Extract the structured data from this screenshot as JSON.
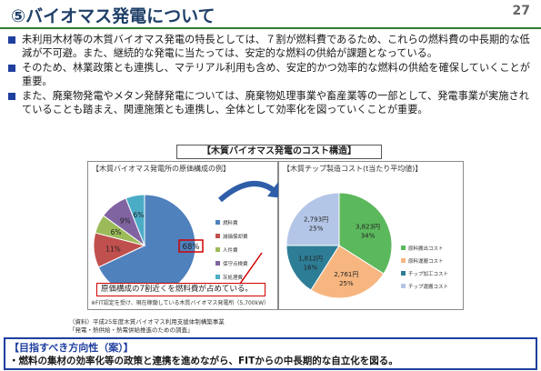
{
  "header": {
    "title": "⑤バイオマス発電について",
    "page_number": "27"
  },
  "bullets": [
    "未利用木材等の木質バイオマス発電の特長としては、７割が燃料費であるため、これらの燃料費の中長期的な低減が不可避。また、継続的な発電に当たっては、安定的な燃料の供給が課題となっている。",
    "そのため、林業政策とも連携し、マテリアル利用も含め、安定的かつ効率的な燃料の供給を確保していくことが重要。",
    "また、廃棄物発電やメタン発酵発電については、廃棄物処理事業や畜産業等の一部として、発電事業が実施されていることも踏まえ、関連施策とも連携し、全体として効率化を図っていくことが重要。"
  ],
  "chart_section_title": "【木質バイオマス発電のコスト構造】",
  "chart_data": [
    {
      "type": "pie",
      "title": "【木質バイオマス発電所の原価構成の例】",
      "slices": [
        {
          "label": "燃料費",
          "value": 68,
          "percent_label": "68%",
          "color": "#4f81bd"
        },
        {
          "label": "減価償却費",
          "value": 11,
          "percent_label": "11%",
          "color": "#c0504d"
        },
        {
          "label": "人件費",
          "value": 6,
          "percent_label": "6%",
          "color": "#9bbb59"
        },
        {
          "label": "保守点検費",
          "value": 9,
          "percent_label": "9%",
          "color": "#8064a2"
        },
        {
          "label": "灰処理費",
          "value": 6,
          "percent_label": "6%",
          "color": "#4bacc6"
        }
      ],
      "legend_position": "right"
    },
    {
      "type": "pie",
      "title": "【木質チップ製造コスト(t当たり平均値)】",
      "slices": [
        {
          "label": "原料搬出コスト",
          "value": 34,
          "amount_label": "3,823円",
          "percent_label": "34%",
          "color": "#5cb85c"
        },
        {
          "label": "原料運搬コスト",
          "value": 25,
          "amount_label": "2,761円",
          "percent_label": "25%",
          "color": "#f7b680"
        },
        {
          "label": "チップ加工コスト",
          "value": 16,
          "amount_label": "1,812円",
          "percent_label": "16%",
          "color": "#2e7d96"
        },
        {
          "label": "チップ運搬コスト",
          "value": 25,
          "amount_label": "2,793円",
          "percent_label": "25%",
          "color": "#b4c6e7"
        }
      ],
      "legend_position": "right"
    }
  ],
  "callout": "原価構成の7割近くを燃料費が占めている。",
  "note": "※FIT認定を受け、現在稼働している木質バイオマス発電所（5,700kW）",
  "source_lines": [
    "（資料）平成25年度木質バイオマス利用支援体制構築事業",
    "「発電・熱供給・熱電併給推進のための調査」"
  ],
  "policy": {
    "heading": "【目指すべき方向性（案）】",
    "body": "・燃料の集材の効率化等の政策と連携を進めながら、FITからの中長期的な自立化を図る。"
  },
  "colors": {
    "accent_blue": "#1f3f9f",
    "title_blue": "#1f3f68",
    "rule_green": "#2e7d32",
    "callout_red": "#d00000"
  }
}
